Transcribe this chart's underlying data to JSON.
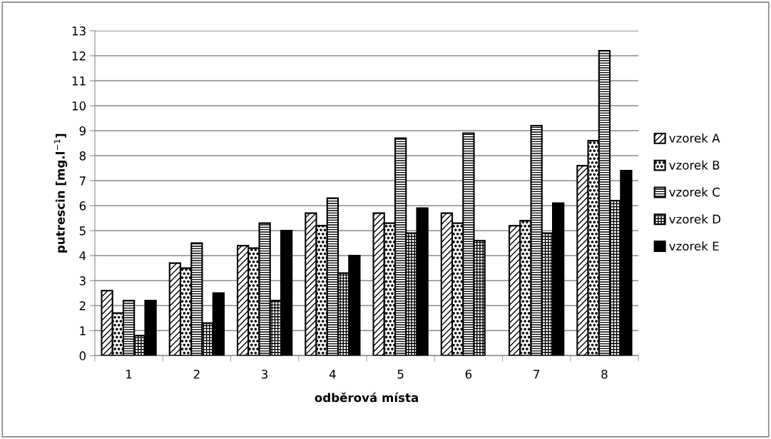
{
  "chart_data": {
    "type": "bar",
    "xlabel": "odběrová místa",
    "ylabel": "putrescin [mg.l$^{−1}$]",
    "categories": [
      "1",
      "2",
      "3",
      "4",
      "5",
      "6",
      "7",
      "8"
    ],
    "series": [
      {
        "name": "vzorek A",
        "color": "#000000",
        "values": [
          2.6,
          3.7,
          4.4,
          5.7,
          5.7,
          5.7,
          5.2,
          7.6
        ]
      },
      {
        "name": "vzorek B",
        "color": "#000000",
        "values": [
          1.7,
          3.5,
          4.3,
          5.2,
          5.3,
          5.3,
          5.4,
          8.6
        ]
      },
      {
        "name": "vzorek C",
        "color": "#000000",
        "values": [
          2.2,
          4.5,
          5.3,
          6.3,
          8.7,
          8.9,
          9.2,
          12.2
        ]
      },
      {
        "name": "vzorek D",
        "color": "#000000",
        "values": [
          0.8,
          1.3,
          2.2,
          3.3,
          4.9,
          4.6,
          4.9,
          6.2
        ]
      },
      {
        "name": "vzorek E",
        "color": "#000000",
        "values": [
          2.2,
          2.5,
          5.0,
          4.0,
          5.9,
          null,
          6.1,
          7.4
        ]
      }
    ],
    "ylim": [
      0,
      13
    ],
    "yticks": [
      0,
      1,
      2,
      3,
      4,
      5,
      6,
      7,
      8,
      9,
      10,
      11,
      12,
      13
    ],
    "grid": "y",
    "legend": "right"
  }
}
